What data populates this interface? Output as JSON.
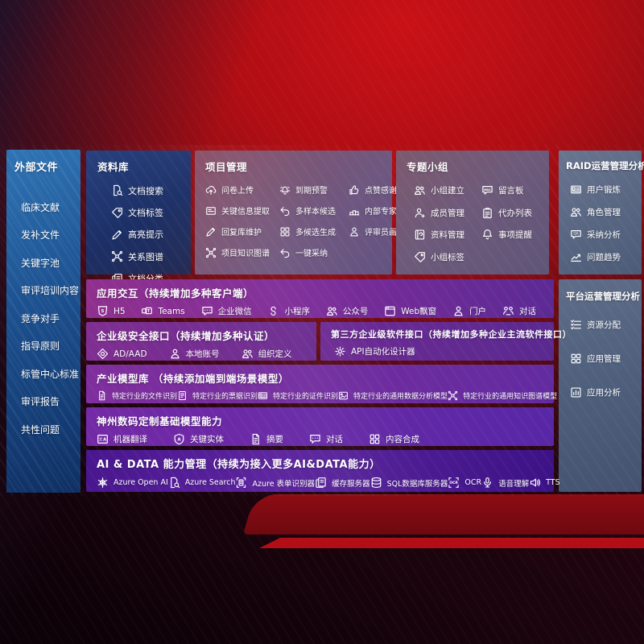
{
  "colors": {
    "background_red": "#b00e14",
    "background_dark": "#1c030a",
    "sidebar_blue_top": "#2f74b5",
    "sidebar_blue_bottom": "#0e2f63",
    "library_panel_navy": "#1d3168",
    "project_panel_mauve": "#74587b",
    "group_panel_mauve": "#6b5a79",
    "raid_panel_slate": "#566480",
    "platform_panel_slate": "#4d5e7a",
    "row_purple": "#7c2d96",
    "row_indigo": "#47158c",
    "text": "#ffffff"
  },
  "sidebar": {
    "title": "外部文件",
    "items": [
      "临床文献",
      "发补文件",
      "关键字池",
      "审评培训内容",
      "竞争对手",
      "指导原则",
      "标管中心标准",
      "审评报告",
      "共性问题"
    ]
  },
  "library": {
    "title": "资料库",
    "items": [
      {
        "label": "文档搜索",
        "icon": "doc-search"
      },
      {
        "label": "文档标签",
        "icon": "tag"
      },
      {
        "label": "高亮提示",
        "icon": "pen"
      },
      {
        "label": "关系图谱",
        "icon": "graph"
      },
      {
        "label": "文档分类",
        "icon": "docs"
      }
    ]
  },
  "project": {
    "title": "项目管理",
    "items": [
      {
        "label": "问卷上传",
        "icon": "cloud-upload"
      },
      {
        "label": "到期预警",
        "icon": "alarm"
      },
      {
        "label": "点赞感谢",
        "icon": "thumbs-up"
      },
      {
        "label": "关键信息提取",
        "icon": "card"
      },
      {
        "label": "多样本候选",
        "icon": "reply-arrow"
      },
      {
        "label": "内部专家排名",
        "icon": "podium"
      },
      {
        "label": "回复库维护",
        "icon": "pen"
      },
      {
        "label": "多候选生成",
        "icon": "grid"
      },
      {
        "label": "评审员画像",
        "icon": "person"
      },
      {
        "label": "项目知识图谱",
        "icon": "graph"
      },
      {
        "label": "一键采纳",
        "icon": "reply-arrow"
      }
    ]
  },
  "group": {
    "title": "专题小组",
    "items": [
      {
        "label": "小组建立",
        "icon": "people"
      },
      {
        "label": "留言板",
        "icon": "bbs"
      },
      {
        "label": "成员管理",
        "icon": "person-add"
      },
      {
        "label": "代办列表",
        "icon": "clipboard"
      },
      {
        "label": "资料管理",
        "icon": "book"
      },
      {
        "label": "事项提醒",
        "icon": "bell"
      },
      {
        "label": "小组标签",
        "icon": "tag"
      }
    ]
  },
  "raid": {
    "title": "RAID运营管理分析",
    "items": [
      {
        "label": "用户锻炼",
        "icon": "id-card"
      },
      {
        "label": "角色管理",
        "icon": "people"
      },
      {
        "label": "采纳分析",
        "icon": "qa-chat"
      },
      {
        "label": "问题趋势",
        "icon": "trend"
      }
    ]
  },
  "platform": {
    "title": "平台运营管理分析",
    "items": [
      {
        "label": "资源分配",
        "icon": "list"
      },
      {
        "label": "应用管理",
        "icon": "grid"
      },
      {
        "label": "应用分析",
        "icon": "report"
      }
    ]
  },
  "rows": {
    "interaction": {
      "title": "应用交互（持续增加多种客户端）",
      "items": [
        {
          "label": "H5",
          "icon": "h5"
        },
        {
          "label": "Teams",
          "icon": "teams"
        },
        {
          "label": "企业微信",
          "icon": "chat"
        },
        {
          "label": "小程序",
          "icon": "miniprogram"
        },
        {
          "label": "公众号",
          "icon": "people"
        },
        {
          "label": "Web飘窗",
          "icon": "browser"
        },
        {
          "label": "门户",
          "icon": "person"
        },
        {
          "label": "对话",
          "icon": "dialog"
        }
      ]
    },
    "security": {
      "title": "企业级安全接口（持续增加多种认证）",
      "items": [
        {
          "label": "AD/AAD",
          "icon": "azure-shield"
        },
        {
          "label": "本地账号",
          "icon": "person"
        },
        {
          "label": "组织定义",
          "icon": "people"
        }
      ]
    },
    "third_party": {
      "title": "第三方企业级软件接口（持续增加多种企业主流软件接口）",
      "items": [
        {
          "label": "API自动化设计器",
          "icon": "gear"
        }
      ]
    },
    "industry_models": {
      "title": "产业模型库 （持续添加端到端场景模型）",
      "items": [
        {
          "label": "特定行业的文件识别",
          "icon": "doc"
        },
        {
          "label": "特定行业的票据识别",
          "icon": "form"
        },
        {
          "label": "特定行业的证件识别",
          "icon": "id-card"
        },
        {
          "label": "特定行业的通用数据分析模型",
          "icon": "image"
        },
        {
          "label": "特定行业的通用知识图谱模型",
          "icon": "graph"
        }
      ]
    },
    "base_models": {
      "title": "神州数码定制基础模型能力",
      "items": [
        {
          "label": "机器翻译",
          "icon": "translate"
        },
        {
          "label": "关键实体",
          "icon": "shield-a"
        },
        {
          "label": "摘要",
          "icon": "doc"
        },
        {
          "label": "对话",
          "icon": "chat"
        },
        {
          "label": "内容合成",
          "icon": "grid"
        }
      ]
    },
    "ai_data": {
      "title": "AI & DATA 能力管理（持续为接入更多AI&DATA能力）",
      "items": [
        {
          "label": "Azure Open AI",
          "icon": "openai"
        },
        {
          "label": "Azure Search",
          "icon": "doc-search"
        },
        {
          "label": "Azure 表单识别器",
          "icon": "brackets-doc"
        },
        {
          "label": "缓存服务器",
          "icon": "docs"
        },
        {
          "label": "SQL数据库服务器",
          "icon": "database"
        },
        {
          "label": "OCR",
          "icon": "ocr"
        },
        {
          "label": "语音理解",
          "icon": "mic"
        },
        {
          "label": "TTS",
          "icon": "speaker"
        }
      ]
    }
  }
}
